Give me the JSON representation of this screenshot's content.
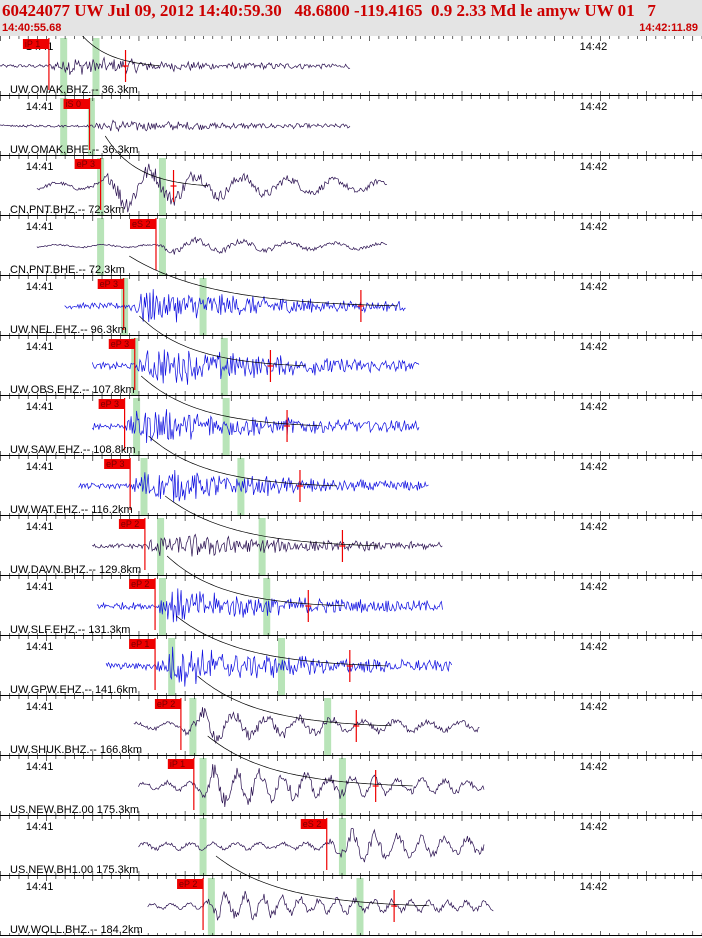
{
  "header": {
    "title": "60424077 UW Jul 09, 2012 14:40:59.30   48.6800 -119.4165  0.9 2.33 Md le amyw UW 01   7",
    "start_time": "14:40:55.68",
    "end_time": "14:42:11.89"
  },
  "colors": {
    "header_bg": "#e4e4e4",
    "header_text": "#cc0000",
    "trace_broadband": "#2a1050",
    "trace_short_period": "#1010e0",
    "pick_flag": "#ee0000",
    "pick_band": "#b8e4b8",
    "grid": "#000000"
  },
  "chart_data": {
    "type": "line",
    "title": "60424077 UW Jul 09, 2012 14:40:59.30   48.6800 -119.4165  0.9 2.33 Md le amyw UW 01   7",
    "x_range": [
      "14:40:55.68",
      "14:42:11.89"
    ],
    "x_range_seconds": [
      0,
      76.21
    ],
    "tick_labels": [
      "14:41",
      "14:42"
    ],
    "tick_seconds": [
      4.32,
      64.32
    ],
    "grid": "vertical lines every second",
    "traces": [
      {
        "label": "UW.OMAK.BHZ.-- 36.3km",
        "kind": "broadband",
        "pick": "iP 1",
        "pick_s": 5.3,
        "band_s": 6.9,
        "second_pick_s": 9.9,
        "second_band_s": 10.4,
        "coda_pick_s": 13.6,
        "start_s": 0.0,
        "end_s": 38.0,
        "amp": 0.18,
        "signal": 0.9,
        "period": 1.0,
        "coda": 1
      },
      {
        "label": "UW.OMAK.BHE.-- 36.3km",
        "kind": "broadband",
        "pick": "iS 0",
        "pick_s": 9.7,
        "band_s": 6.9,
        "second_band_s": 9.9,
        "start_s": 0.0,
        "end_s": 38.0,
        "amp": 0.14,
        "signal": 0.75,
        "period": 1.0,
        "coda": 0
      },
      {
        "label": "CN.PNT.BHZ.-- 72.3km",
        "kind": "broadband",
        "pick": "eP 3",
        "pick_s": 10.9,
        "band_s": 10.9,
        "second_band_s": 17.6,
        "coda_pick_s": 18.8,
        "start_s": 4.0,
        "end_s": 42.0,
        "amp": 0.45,
        "signal": 0.9,
        "period": 5.0,
        "coda": 1
      },
      {
        "label": "CN.PNT.BHE.-- 72.3km",
        "kind": "broadband",
        "pick": "eS 2",
        "pick_s": 16.9,
        "band_s": 10.9,
        "second_band_s": 17.6,
        "start_s": 4.0,
        "end_s": 42.0,
        "amp": 0.2,
        "signal": 0.75,
        "period": 5.0,
        "coda": 0
      },
      {
        "label": "UW.NEL.EHZ.-- 96.3km",
        "kind": "short_period",
        "pick": "eP 3",
        "pick_s": 13.4,
        "band_s": 13.5,
        "second_band_s": 22.0,
        "coda_pick_s": 39.1,
        "start_s": 7.0,
        "end_s": 44.0,
        "amp": 0.35,
        "signal": 0.9,
        "period": 0.3,
        "coda": 1
      },
      {
        "label": "UW.OBS.EHZ.-- 107.8km",
        "kind": "short_period",
        "pick": "eP 3",
        "pick_s": 14.6,
        "band_s": 14.6,
        "second_band_s": 24.3,
        "coda_pick_s": 29.3,
        "start_s": 10.0,
        "end_s": 45.5,
        "amp": 0.4,
        "signal": 0.9,
        "period": 0.3,
        "coda": 1
      },
      {
        "label": "UW.SAW.EHZ.-- 108.8km",
        "kind": "short_period",
        "pick": "eP 3",
        "pick_s": 13.5,
        "band_s": 14.8,
        "second_band_s": 24.5,
        "coda_pick_s": 31.1,
        "start_s": 10.0,
        "end_s": 45.5,
        "amp": 0.38,
        "signal": 0.85,
        "period": 0.3,
        "coda": 1
      },
      {
        "label": "UW.WAT.EHZ.-- 116.2km",
        "kind": "short_period",
        "pick": "eP 3",
        "pick_s": 14.1,
        "band_s": 15.6,
        "second_band_s": 26.1,
        "coda_pick_s": 32.5,
        "start_s": 8.5,
        "end_s": 46.5,
        "amp": 0.35,
        "signal": 0.9,
        "period": 0.3,
        "coda": 1
      },
      {
        "label": "UW.DAVN.BHZ.-- 129.8km",
        "kind": "broadband",
        "pick": "eP 2",
        "pick_s": 15.7,
        "band_s": 17.4,
        "second_band_s": 28.4,
        "coda_pick_s": 37.1,
        "start_s": 10.0,
        "end_s": 48.0,
        "amp": 0.28,
        "signal": 0.8,
        "period": 0.6,
        "coda": 1
      },
      {
        "label": "UW.SLF.EHZ.-- 131.3km",
        "kind": "short_period",
        "pick": "eP 2",
        "pick_s": 16.8,
        "band_s": 17.6,
        "second_band_s": 28.9,
        "coda_pick_s": 33.4,
        "start_s": 10.5,
        "end_s": 48.0,
        "amp": 0.4,
        "signal": 0.7,
        "period": 0.3,
        "coda": 1
      },
      {
        "label": "UW.GPW.EHZ.-- 141.6km",
        "kind": "short_period",
        "pick": "eP 1",
        "pick_s": 16.8,
        "band_s": 18.6,
        "second_band_s": 30.5,
        "coda_pick_s": 37.9,
        "start_s": 11.5,
        "end_s": 49.0,
        "amp": 0.42,
        "signal": 0.8,
        "period": 0.3,
        "coda": 1
      },
      {
        "label": "UW.SHUK.BHZ.-- 166.8km",
        "kind": "broadband",
        "pick": "eP 2",
        "pick_s": 19.6,
        "band_s": 20.9,
        "second_band_s": 35.5,
        "coda_pick_s": 38.6,
        "start_s": 14.5,
        "end_s": 52.0,
        "amp": 0.45,
        "signal": 0.6,
        "period": 3.5,
        "coda": 1
      },
      {
        "label": "US.NEW.BHZ.00 175.3km",
        "kind": "broadband",
        "pick": "iP 1",
        "pick_s": 21.0,
        "band_s": 22.0,
        "second_band_s": 37.1,
        "coda_pick_s": 40.7,
        "start_s": 15.0,
        "end_s": 52.5,
        "amp": 0.55,
        "signal": 0.6,
        "period": 2.5,
        "coda": 1
      },
      {
        "label": "US.NEW.BH1.00 175.3km",
        "kind": "broadband",
        "pick": "eS 2",
        "pick_s": 35.4,
        "band_s": 22.0,
        "second_band_s": 37.1,
        "start_s": 15.0,
        "end_s": 52.5,
        "amp": 0.45,
        "signal": 0.55,
        "period": 2.5,
        "coda": 0
      },
      {
        "label": "UW.WOLL.BHZ.-- 184.2km",
        "kind": "broadband",
        "pick": "eP 2",
        "pick_s": 22.0,
        "band_s": 22.9,
        "second_band_s": 39.0,
        "coda_pick_s": 42.7,
        "start_s": 16.0,
        "end_s": 53.5,
        "amp": 0.4,
        "signal": 0.6,
        "period": 2.0,
        "coda": 1
      }
    ]
  }
}
